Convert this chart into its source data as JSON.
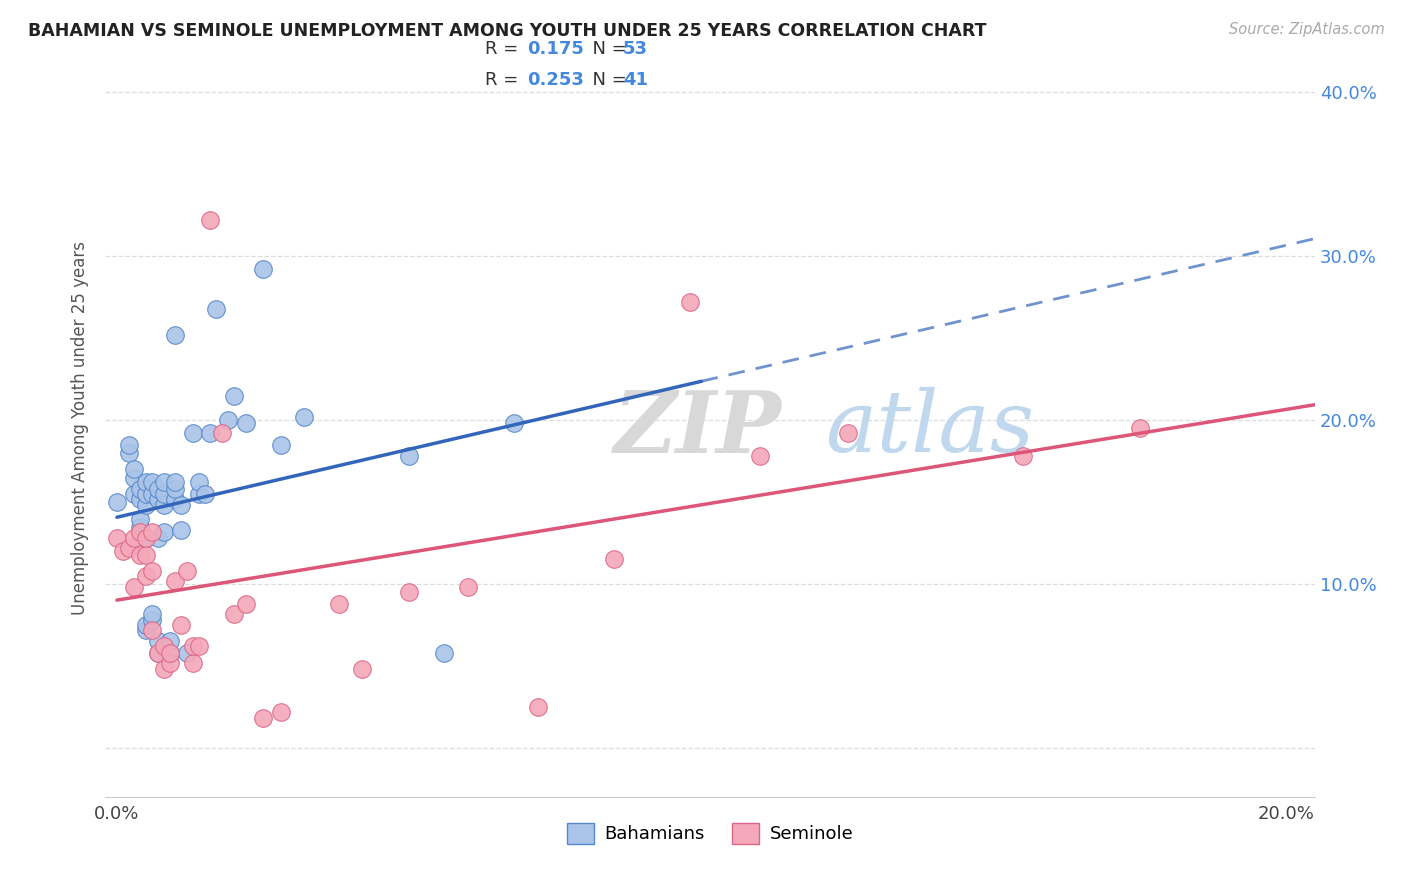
{
  "title": "BAHAMIAN VS SEMINOLE UNEMPLOYMENT AMONG YOUTH UNDER 25 YEARS CORRELATION CHART",
  "source": "Source: ZipAtlas.com",
  "ylabel": "Unemployment Among Youth under 25 years",
  "xlim": [
    -0.002,
    0.205
  ],
  "ylim": [
    -0.03,
    0.42
  ],
  "xticks": [
    0.0,
    0.05,
    0.1,
    0.15,
    0.2
  ],
  "yticks": [
    0.0,
    0.1,
    0.2,
    0.3,
    0.4
  ],
  "xticklabels": [
    "0.0%",
    "",
    "",
    "",
    "20.0%"
  ],
  "yticklabels_right": [
    "",
    "10.0%",
    "20.0%",
    "30.0%",
    "40.0%"
  ],
  "watermark_zip": "ZIP",
  "watermark_atlas": "atlas",
  "legend_bahamian_R": "0.175",
  "legend_bahamian_N": "53",
  "legend_seminole_R": "0.253",
  "legend_seminole_N": "41",
  "bahamian_color": "#aac4e8",
  "seminole_color": "#f4a8ba",
  "bahamian_edge_color": "#5588cc",
  "seminole_edge_color": "#dd6688",
  "bahamian_line_color": "#3366bb",
  "seminole_line_color": "#dd5577",
  "right_axis_color": "#4488dd",
  "bahamian_x": [
    0.0,
    0.002,
    0.002,
    0.003,
    0.003,
    0.003,
    0.004,
    0.004,
    0.004,
    0.004,
    0.005,
    0.005,
    0.005,
    0.005,
    0.005,
    0.005,
    0.006,
    0.006,
    0.006,
    0.006,
    0.007,
    0.007,
    0.007,
    0.007,
    0.007,
    0.008,
    0.008,
    0.008,
    0.008,
    0.009,
    0.009,
    0.01,
    0.01,
    0.01,
    0.01,
    0.011,
    0.011,
    0.012,
    0.013,
    0.014,
    0.014,
    0.015,
    0.016,
    0.017,
    0.019,
    0.02,
    0.022,
    0.025,
    0.028,
    0.032,
    0.05,
    0.056,
    0.068
  ],
  "bahamian_y": [
    0.15,
    0.18,
    0.185,
    0.155,
    0.165,
    0.17,
    0.135,
    0.14,
    0.152,
    0.158,
    0.072,
    0.075,
    0.128,
    0.148,
    0.155,
    0.162,
    0.078,
    0.082,
    0.155,
    0.162,
    0.058,
    0.065,
    0.128,
    0.152,
    0.158,
    0.132,
    0.148,
    0.155,
    0.162,
    0.058,
    0.065,
    0.152,
    0.158,
    0.162,
    0.252,
    0.133,
    0.148,
    0.058,
    0.192,
    0.155,
    0.162,
    0.155,
    0.192,
    0.268,
    0.2,
    0.215,
    0.198,
    0.292,
    0.185,
    0.202,
    0.178,
    0.058,
    0.198
  ],
  "seminole_x": [
    0.0,
    0.001,
    0.002,
    0.003,
    0.003,
    0.004,
    0.004,
    0.005,
    0.005,
    0.005,
    0.006,
    0.006,
    0.006,
    0.007,
    0.008,
    0.008,
    0.009,
    0.009,
    0.01,
    0.011,
    0.012,
    0.013,
    0.013,
    0.014,
    0.016,
    0.018,
    0.02,
    0.022,
    0.025,
    0.028,
    0.038,
    0.042,
    0.05,
    0.06,
    0.072,
    0.085,
    0.098,
    0.11,
    0.125,
    0.155,
    0.175
  ],
  "seminole_y": [
    0.128,
    0.12,
    0.122,
    0.098,
    0.128,
    0.118,
    0.132,
    0.105,
    0.118,
    0.128,
    0.072,
    0.108,
    0.132,
    0.058,
    0.048,
    0.062,
    0.052,
    0.058,
    0.102,
    0.075,
    0.108,
    0.052,
    0.062,
    0.062,
    0.322,
    0.192,
    0.082,
    0.088,
    0.018,
    0.022,
    0.088,
    0.048,
    0.095,
    0.098,
    0.025,
    0.115,
    0.272,
    0.178,
    0.192,
    0.178,
    0.195
  ]
}
